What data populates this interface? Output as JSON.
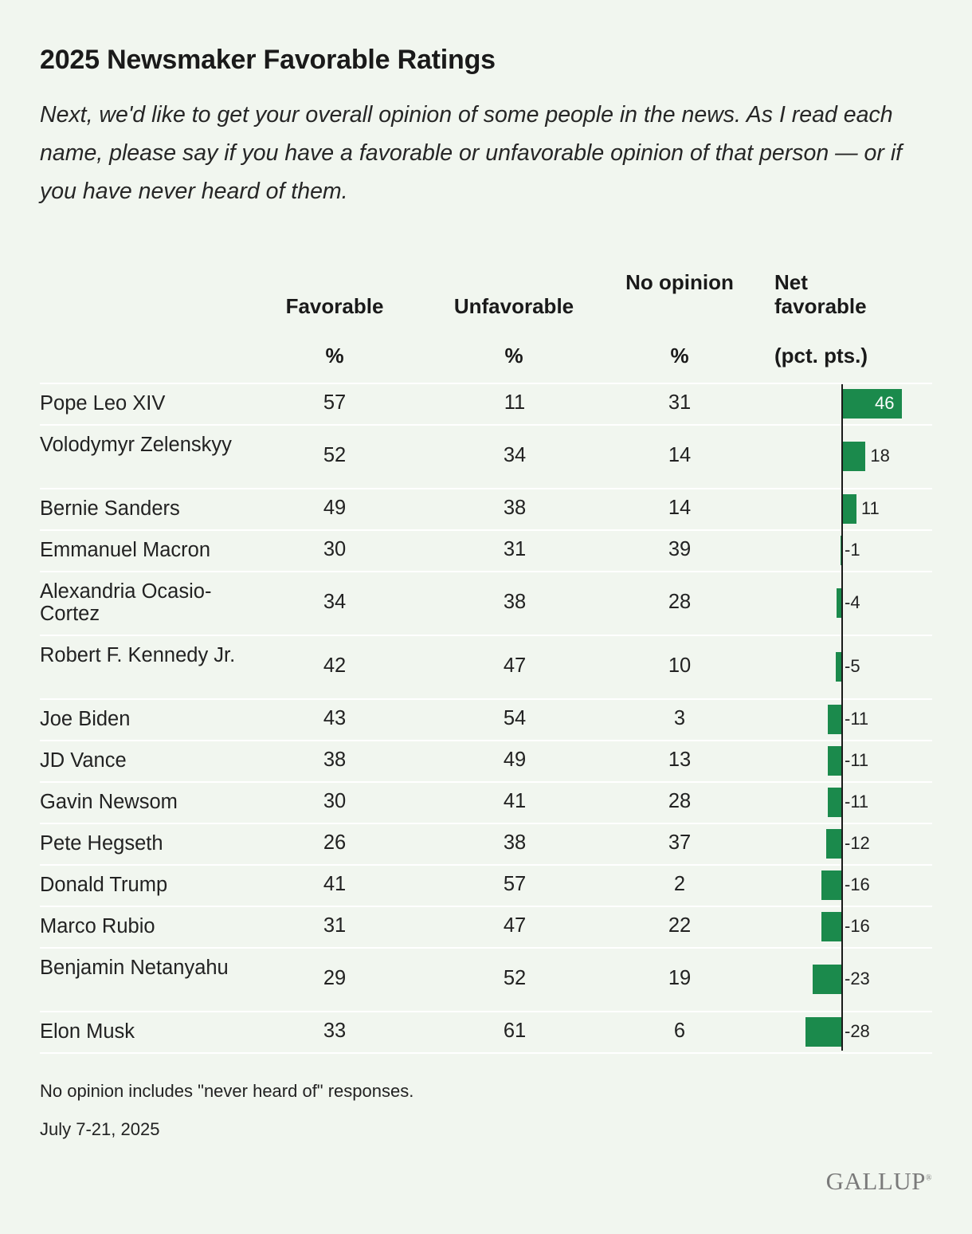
{
  "chart_data": {
    "type": "table",
    "title": "2025 Newsmaker Favorable Ratings",
    "subtitle": "Next, we'd like to get your overall opinion of some people in the news. As I read each name, please say if you have a favorable or unfavorable opinion of that person — or if you have never heard of them.",
    "columns": {
      "favorable": "Favorable",
      "unfavorable": "Unfavorable",
      "no_opinion": "No opinion",
      "net": "Net favorable",
      "pct": "%",
      "net_unit": "(pct. pts.)"
    },
    "rows": [
      {
        "name": "Pope Leo XIV",
        "favorable": 57,
        "unfavorable": 11,
        "no_opinion": 31,
        "net": 46
      },
      {
        "name": "Volodymyr Zelenskyy",
        "favorable": 52,
        "unfavorable": 34,
        "no_opinion": 14,
        "net": 18
      },
      {
        "name": "Bernie Sanders",
        "favorable": 49,
        "unfavorable": 38,
        "no_opinion": 14,
        "net": 11
      },
      {
        "name": "Emmanuel Macron",
        "favorable": 30,
        "unfavorable": 31,
        "no_opinion": 39,
        "net": -1
      },
      {
        "name": "Alexandria Ocasio-Cortez",
        "favorable": 34,
        "unfavorable": 38,
        "no_opinion": 28,
        "net": -4
      },
      {
        "name": "Robert F. Kennedy Jr.",
        "favorable": 42,
        "unfavorable": 47,
        "no_opinion": 10,
        "net": -5
      },
      {
        "name": "Joe Biden",
        "favorable": 43,
        "unfavorable": 54,
        "no_opinion": 3,
        "net": -11
      },
      {
        "name": "JD Vance",
        "favorable": 38,
        "unfavorable": 49,
        "no_opinion": 13,
        "net": -11
      },
      {
        "name": "Gavin Newsom",
        "favorable": 30,
        "unfavorable": 41,
        "no_opinion": 28,
        "net": -11
      },
      {
        "name": "Pete Hegseth",
        "favorable": 26,
        "unfavorable": 38,
        "no_opinion": 37,
        "net": -12
      },
      {
        "name": "Donald Trump",
        "favorable": 41,
        "unfavorable": 57,
        "no_opinion": 2,
        "net": -16
      },
      {
        "name": "Marco Rubio",
        "favorable": 31,
        "unfavorable": 47,
        "no_opinion": 22,
        "net": -16
      },
      {
        "name": "Benjamin Netanyahu",
        "favorable": 29,
        "unfavorable": 52,
        "no_opinion": 19,
        "net": -23
      },
      {
        "name": "Elon Musk",
        "favorable": 33,
        "unfavorable": 61,
        "no_opinion": 6,
        "net": -28
      }
    ],
    "bar_color": "#1b8a4c"
  },
  "footer": {
    "note": "No opinion includes \"never heard of\" responses.",
    "date": "July 7-21, 2025",
    "logo": "GALLUP"
  }
}
